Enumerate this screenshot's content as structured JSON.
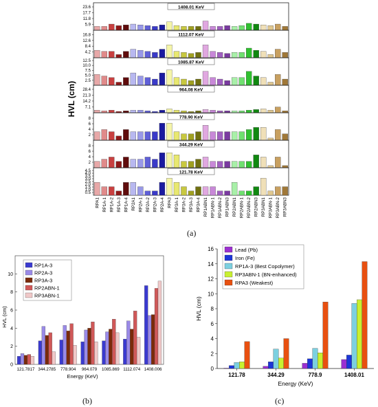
{
  "figure": {
    "label_a": "(a)",
    "label_b": "(b)",
    "label_c": "(c)"
  },
  "chart_data": [
    {
      "id": "a",
      "type": "bar",
      "ylabel": "HVL (cm)",
      "categories": [
        "RPA1",
        "RP1A-1",
        "RP1A-2",
        "RP1A-3",
        "RP1A-4",
        "RP2A1",
        "RP2A-1",
        "RP2A-2",
        "RP2A-3",
        "RP2A-4",
        "RPA3",
        "RP3A-1",
        "RP3A-2",
        "RP3A-3",
        "RP3A-4",
        "RP1ABN1",
        "RP1ABN-1",
        "RP1ABN-2",
        "RP1ABN3",
        "RP2ABN1",
        "RP2ABN-1",
        "RP2ABN-2",
        "RP2ABN3",
        "RP3ABN1",
        "RP3ABN-1",
        "RP3ABN-2",
        "RP3ABN3"
      ],
      "colors": [
        "#e8a8a8",
        "#e08a8a",
        "#c84040",
        "#901818",
        "#600c0c",
        "#b8b8f0",
        "#9898e8",
        "#6060d8",
        "#3a3ac8",
        "#1a1aa0",
        "#f5f5a8",
        "#e8e870",
        "#c8c840",
        "#a0a020",
        "#707010",
        "#e0a8e0",
        "#c888d8",
        "#a060c0",
        "#7a3aa0",
        "#a8f0a8",
        "#70e070",
        "#30c030",
        "#108810",
        "#f0e0b8",
        "#e0c890",
        "#c8a060",
        "#a07838"
      ],
      "panels": [
        {
          "title": "1408.01 KeV",
          "yticks": [
            "5.9",
            "11.8",
            "17.7",
            "23.6"
          ],
          "ymax": 25,
          "values": [
            5,
            5,
            8,
            6,
            7,
            8,
            7,
            6,
            5,
            7,
            11,
            6,
            5,
            5,
            5,
            12,
            5,
            5,
            6,
            5,
            6,
            9,
            8,
            7,
            6,
            8,
            5
          ]
        },
        {
          "title": "1112.07 KeV",
          "yticks": [
            "4.2",
            "8.4",
            "12.6",
            "16.8"
          ],
          "ymax": 18,
          "values": [
            7,
            6,
            6,
            3,
            6,
            8,
            7,
            6,
            5,
            8,
            12,
            6,
            5,
            4,
            5,
            12,
            6,
            5,
            4,
            5,
            5,
            9,
            7,
            6,
            3,
            8,
            5
          ]
        },
        {
          "title": "1085.87 KeV",
          "yticks": [
            "2.5",
            "5.0",
            "7.5",
            "10.0",
            "12.5"
          ],
          "ymax": 12.5,
          "values": [
            7,
            6,
            5,
            2,
            5,
            8,
            6,
            5,
            4,
            8,
            10,
            5,
            4,
            3,
            4,
            9,
            5,
            4,
            3,
            5,
            5,
            9,
            6,
            5,
            2,
            7,
            4
          ]
        },
        {
          "title": "964.08 KeV",
          "yticks": [
            "7.1",
            "14.2",
            "21.3",
            "28.4"
          ],
          "ymax": 30,
          "values": [
            4,
            3,
            4,
            2,
            3,
            4,
            4,
            3,
            2,
            4,
            6,
            4,
            3,
            2,
            3,
            5,
            4,
            3,
            3,
            3,
            3,
            4,
            5,
            6,
            4,
            9,
            3
          ]
        },
        {
          "title": "778.90 KeV",
          "yticks": [
            "2",
            "4",
            "6",
            "8"
          ],
          "ymax": 9,
          "values": [
            4,
            5,
            4,
            2,
            5,
            4,
            4,
            4,
            4,
            8,
            8,
            4,
            3,
            3,
            4,
            7,
            4,
            4,
            4,
            4,
            4,
            5,
            6,
            6,
            1,
            5,
            3
          ]
        },
        {
          "title": "344.29 KeV",
          "yticks": [
            "2",
            "4",
            "6",
            "8"
          ],
          "ymax": 9,
          "values": [
            3,
            4,
            5,
            3,
            5,
            4,
            4,
            5,
            4,
            7,
            7,
            6,
            3,
            3,
            4,
            5,
            3,
            3,
            3,
            3,
            3,
            3,
            6,
            5,
            1,
            5,
            1
          ]
        },
        {
          "title": "121.78 KeV",
          "yticks": [
            "0.5",
            "1.0",
            "1.5",
            "2.0",
            "2.5",
            "3.0",
            "3.5",
            "4.0",
            "4.5"
          ],
          "ymax": 4.5,
          "values": [
            3,
            2,
            2,
            1,
            3,
            3,
            2,
            1,
            1,
            3,
            4,
            3,
            2,
            1,
            2,
            2,
            2,
            1,
            1,
            3,
            1,
            1,
            2,
            4,
            1,
            2,
            2
          ]
        }
      ]
    },
    {
      "id": "b",
      "type": "bar",
      "xlabel": "Energy (KeV)",
      "ylabel": "HVL (cm)",
      "ylim": [
        0,
        12
      ],
      "yticks": [
        "0",
        "2",
        "4",
        "6",
        "8",
        "10"
      ],
      "categories": [
        "121.7817",
        "344.2785",
        "778.904",
        "964.079",
        "1085.869",
        "1112.074",
        "1408.006"
      ],
      "series": [
        {
          "name": "RP1A-3",
          "color": "#3a3ad0",
          "values": [
            0.9,
            2.6,
            2.7,
            2.5,
            2.6,
            2.8,
            8.7
          ]
        },
        {
          "name": "RP2A-3",
          "color": "#9a8ae8",
          "values": [
            1.2,
            4.2,
            4.3,
            3.8,
            3.6,
            4.8,
            5.4
          ]
        },
        {
          "name": "RP3A-3",
          "color": "#7a2a0a",
          "values": [
            1.0,
            3.2,
            3.7,
            4.0,
            3.9,
            3.9,
            5.5
          ]
        },
        {
          "name": "RP2ABN-1",
          "color": "#d05858",
          "values": [
            1.1,
            3.5,
            4.5,
            4.7,
            5.0,
            5.9,
            8.4
          ]
        },
        {
          "name": "RP3ABN-1",
          "color": "#f0c8c8",
          "values": [
            0.9,
            1.4,
            2.1,
            2.5,
            3.5,
            3.0,
            9.2
          ]
        }
      ]
    },
    {
      "id": "c",
      "type": "bar",
      "xlabel": "Energy (KeV)",
      "ylabel": "HVL (cm)",
      "ylim": [
        0,
        16
      ],
      "yticks": [
        "0",
        "2",
        "4",
        "6",
        "8",
        "10",
        "12",
        "14",
        "16"
      ],
      "categories": [
        "121.78",
        "344.29",
        "778.9",
        "1408.01"
      ],
      "series": [
        {
          "name": "Lead (Pb)",
          "color": "#9b30d0",
          "values": [
            0.05,
            0.3,
            0.7,
            1.2
          ]
        },
        {
          "name": "Iron (Fe)",
          "color": "#1c36d8",
          "values": [
            0.4,
            0.9,
            1.3,
            1.8
          ]
        },
        {
          "name": "RP1A-3 (Best Copolymer)",
          "color": "#7cd0e0",
          "values": [
            0.8,
            2.6,
            2.7,
            8.7
          ]
        },
        {
          "name": "RP3ABN-1 (BN-enhanced)",
          "color": "#c8f030",
          "values": [
            0.9,
            1.4,
            2.1,
            9.2
          ]
        },
        {
          "name": "RPA3 (Weakest)",
          "color": "#e85010",
          "values": [
            3.6,
            4.0,
            8.9,
            14.3
          ]
        }
      ]
    }
  ]
}
